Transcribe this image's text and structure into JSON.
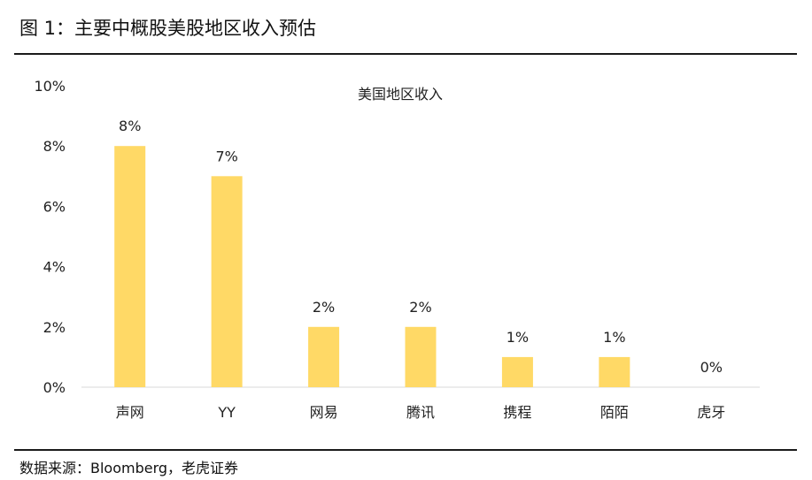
{
  "figure": {
    "title": "图 1：主要中概股美股地区收入预估",
    "source": "数据来源：Bloomberg，老虎证券"
  },
  "colors": {
    "bar": "#FFD966",
    "axis": "#d9d9d9",
    "rule": "#1a1a1a"
  },
  "chart_data": {
    "type": "bar",
    "title": "美国地区收入",
    "categories": [
      "声网",
      "YY",
      "网易",
      "腾讯",
      "携程",
      "陌陌",
      "虎牙"
    ],
    "values": [
      8,
      7,
      2,
      2,
      1,
      1,
      0
    ],
    "data_labels": [
      "8%",
      "7%",
      "2%",
      "2%",
      "1%",
      "1%",
      "0%"
    ],
    "yticks": [
      0,
      2,
      4,
      6,
      8,
      10
    ],
    "ytick_labels": [
      "0%",
      "2%",
      "4%",
      "6%",
      "8%",
      "10%"
    ],
    "ylim": [
      0,
      10
    ],
    "xlabel": "",
    "ylabel": "",
    "grid": false,
    "legend": "none"
  }
}
